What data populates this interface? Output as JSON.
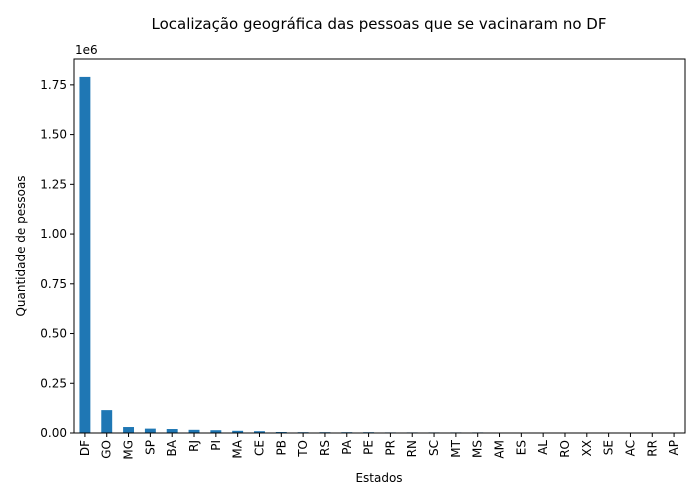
{
  "chart_data": {
    "type": "bar",
    "title": "Localização geográfica das pessoas que se vacinaram no DF",
    "xlabel": "Estados",
    "ylabel": "Quantidade de pessoas",
    "y_offset_label": "1e6",
    "ylim": [
      0,
      1.88
    ],
    "yticks": [
      0,
      0.25,
      0.5,
      0.75,
      1.0,
      1.25,
      1.5,
      1.75
    ],
    "ytick_labels": [
      "0.00",
      "0.25",
      "0.50",
      "0.75",
      "1.00",
      "1.25",
      "1.50",
      "1.75"
    ],
    "categories": [
      "DF",
      "GO",
      "MG",
      "SP",
      "BA",
      "RJ",
      "PI",
      "MA",
      "CE",
      "PB",
      "TO",
      "RS",
      "PA",
      "PE",
      "PR",
      "RN",
      "SC",
      "MT",
      "MS",
      "AM",
      "ES",
      "AL",
      "RO",
      "XX",
      "SE",
      "AC",
      "RR",
      "AP"
    ],
    "values": [
      1.79,
      0.115,
      0.03,
      0.022,
      0.02,
      0.016,
      0.014,
      0.011,
      0.009,
      0.005,
      0.004,
      0.004,
      0.004,
      0.004,
      0.003,
      0.003,
      0.003,
      0.003,
      0.003,
      0.001,
      0.001,
      0.001,
      0.001,
      0.001,
      0.0005,
      0.0005,
      0.0005,
      0.0003
    ],
    "bar_color": "#1f77b4",
    "grid": false,
    "legend": "none"
  }
}
